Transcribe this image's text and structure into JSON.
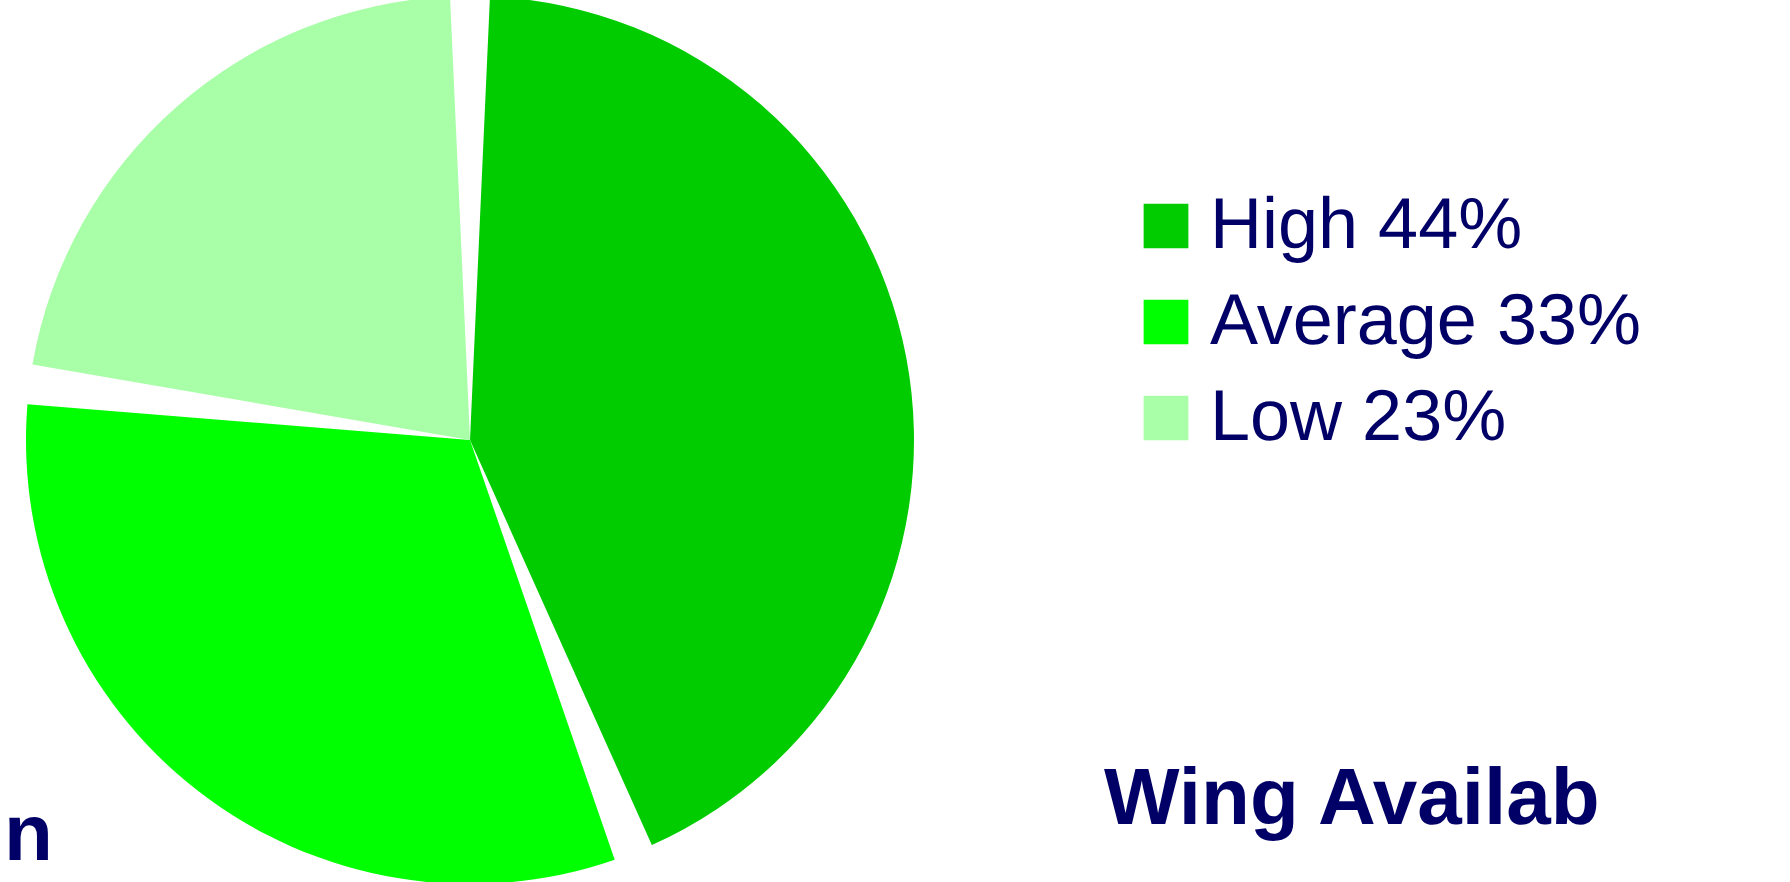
{
  "chart_data": {
    "type": "pie",
    "categories": [
      "High",
      "Average",
      "Low"
    ],
    "values": [
      44,
      33,
      23
    ],
    "colors": [
      "#00cc00",
      "#00ff00",
      "#a8ffa8"
    ],
    "value_labels": [
      "44%",
      "33%",
      "23%"
    ],
    "legend": "right",
    "annotations": [
      "Wing Availab",
      "n"
    ]
  }
}
